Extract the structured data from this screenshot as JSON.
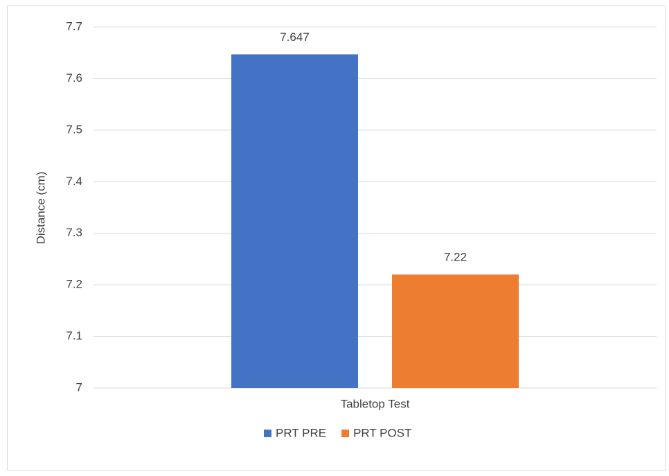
{
  "chart_data": {
    "type": "bar",
    "categories": [
      "Tabletop Test"
    ],
    "series": [
      {
        "name": "PRT PRE",
        "color": "#4472c4",
        "values": [
          7.647
        ]
      },
      {
        "name": "PRT POST",
        "color": "#ed7d31",
        "values": [
          7.22
        ]
      }
    ],
    "ylabel": "Distance (cm)",
    "ylim": [
      7,
      7.7
    ],
    "yticks": [
      7,
      7.1,
      7.2,
      7.3,
      7.4,
      7.5,
      7.6,
      7.7
    ],
    "grid": true,
    "legend": "bottom",
    "data_labels": true
  }
}
